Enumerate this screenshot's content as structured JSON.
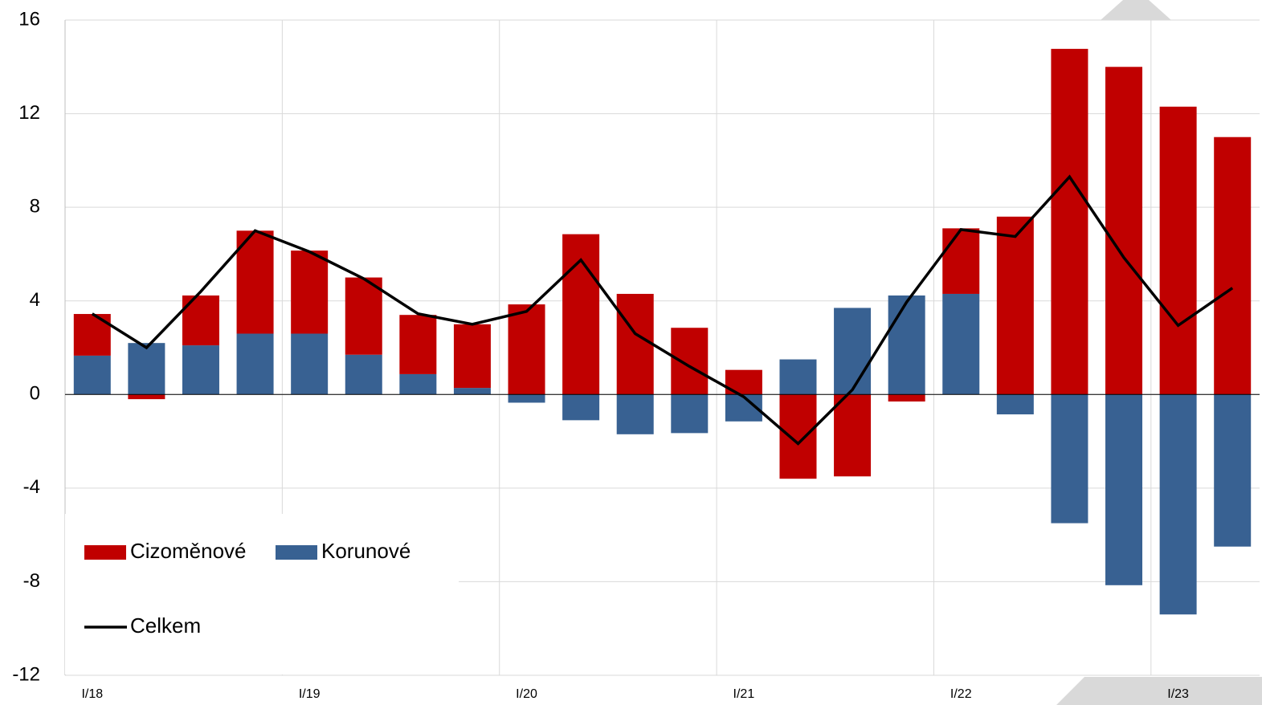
{
  "chart_data": {
    "type": "bar",
    "stacked": true,
    "categories": [
      "I/18",
      null,
      null,
      null,
      "I/19",
      null,
      null,
      null,
      "I/20",
      null,
      null,
      null,
      "I/21",
      null,
      null,
      null,
      "I/22",
      null,
      null,
      null,
      "I/23",
      null
    ],
    "series": [
      {
        "name": "Cizoměnové",
        "color": "#c00000",
        "values": [
          1.78,
          -0.2,
          2.13,
          4.4,
          3.55,
          3.3,
          2.53,
          2.72,
          3.85,
          6.85,
          4.3,
          2.85,
          1.05,
          -3.6,
          -3.5,
          -0.3,
          2.8,
          7.6,
          14.77,
          14.0,
          12.3,
          11.0
        ]
      },
      {
        "name": "Korunové",
        "color": "#386192",
        "values": [
          1.66,
          2.2,
          2.1,
          2.6,
          2.6,
          1.7,
          0.87,
          0.28,
          -0.35,
          -1.1,
          -1.7,
          -1.65,
          -1.15,
          1.5,
          3.7,
          4.23,
          4.3,
          -0.85,
          -5.5,
          -8.15,
          -9.4,
          -6.5
        ]
      },
      {
        "name": "Celkem",
        "type": "line",
        "color": "#000000",
        "values": [
          3.45,
          2.0,
          4.4,
          7.0,
          6.1,
          4.95,
          3.45,
          3.0,
          3.55,
          5.75,
          2.6,
          1.2,
          -0.1,
          -2.1,
          0.2,
          3.95,
          7.05,
          6.75,
          9.3,
          5.85,
          2.95,
          4.55
        ]
      }
    ],
    "ylim": [
      -12,
      16
    ],
    "yticks": [
      -12,
      -8,
      -4,
      0,
      4,
      8,
      12,
      16
    ],
    "grid": true
  }
}
